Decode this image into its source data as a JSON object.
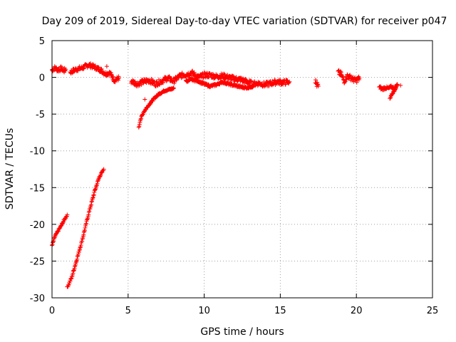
{
  "chart_data": {
    "type": "scatter",
    "title": "Day 209 of 2019, Sidereal Day-to-day VTEC variation (SDTVAR) for receiver p047",
    "xlabel": "GPS time / hours",
    "ylabel": "SDTVAR / TECUs",
    "xlim": [
      0,
      25
    ],
    "ylim": [
      -30,
      5
    ],
    "xticks": [
      0,
      5,
      10,
      15,
      20,
      25
    ],
    "yticks": [
      5,
      0,
      -5,
      -10,
      -15,
      -20,
      -25,
      -30
    ],
    "grid": true,
    "marker": "+",
    "color": "#ff0000",
    "series": [
      {
        "name": "SDTVAR",
        "segments": [
          {
            "x": [
              0.0,
              0.2,
              0.4,
              0.6,
              0.8,
              0.9
            ],
            "y": [
              1.0,
              1.3,
              1.0,
              1.2,
              0.9,
              1.1
            ],
            "spread": 0.6
          },
          {
            "x": [
              1.2,
              1.6,
              2.0,
              2.4,
              2.8,
              3.2,
              3.5,
              3.8,
              4.1,
              4.4
            ],
            "y": [
              0.7,
              1.1,
              1.3,
              1.7,
              1.4,
              1.0,
              0.5,
              0.6,
              -0.4,
              -0.1
            ],
            "spread": 0.6
          },
          {
            "x": [
              0.0,
              0.2,
              0.4,
              0.6,
              0.8,
              1.0
            ],
            "y": [
              -22.9,
              -21.6,
              -20.9,
              -20.2,
              -19.4,
              -18.7
            ],
            "spread": 0.25
          },
          {
            "x": [
              1.0,
              1.3,
              1.6,
              2.0,
              2.4,
              2.8,
              3.1,
              3.4
            ],
            "y": [
              -28.6,
              -27.2,
              -25.0,
              -22.0,
              -18.6,
              -15.5,
              -13.6,
              -12.5
            ],
            "spread": 0.25
          },
          {
            "x": [
              5.7,
              5.8,
              6.0,
              6.3,
              6.7,
              7.0,
              7.4,
              7.8,
              8.0
            ],
            "y": [
              -6.9,
              -5.8,
              -4.8,
              -3.9,
              -2.9,
              -2.3,
              -1.8,
              -1.6,
              -1.5
            ],
            "spread": 0.25
          },
          {
            "x": [
              5.2,
              5.6,
              6.0,
              6.4,
              6.8,
              7.2,
              7.6,
              8.0,
              8.4,
              8.8,
              9.2,
              9.6,
              10.0,
              10.4,
              10.8,
              11.2,
              11.6,
              12.0,
              12.4,
              12.8,
              13.2,
              13.6,
              14.0,
              14.4,
              14.8,
              15.2,
              15.6
            ],
            "y": [
              -0.5,
              -0.9,
              -0.6,
              -0.4,
              -0.9,
              -0.5,
              -0.1,
              -0.5,
              0.2,
              0.4,
              0.6,
              0.0,
              0.3,
              0.3,
              0.1,
              0.2,
              0.0,
              -0.2,
              -0.3,
              -0.6,
              -0.9,
              -0.8,
              -1.0,
              -0.8,
              -0.6,
              -0.7,
              -0.6
            ],
            "spread": 0.7
          },
          {
            "x": [
              8.8,
              9.2,
              9.6,
              10.0,
              10.4,
              10.8,
              11.2,
              11.6,
              12.0,
              12.4,
              12.8,
              13.2
            ],
            "y": [
              -0.5,
              -0.3,
              -0.5,
              -0.9,
              -1.2,
              -1.0,
              -0.6,
              -0.9,
              -1.1,
              -1.3,
              -1.4,
              -1.2
            ],
            "spread": 0.3
          },
          {
            "x": [
              17.3,
              17.4,
              17.5
            ],
            "y": [
              -0.5,
              -1.0,
              -1.2
            ],
            "spread": 0.8
          },
          {
            "x": [
              18.8,
              19.0,
              19.2,
              19.4,
              19.6,
              19.8,
              20.0,
              20.2
            ],
            "y": [
              0.7,
              0.4,
              -0.5,
              0.2,
              0.0,
              -0.3,
              -0.4,
              -0.1
            ],
            "spread": 0.7
          },
          {
            "x": [
              21.5,
              21.7,
              21.9,
              22.1,
              22.3,
              22.5,
              22.7
            ],
            "y": [
              -1.3,
              -1.6,
              -1.4,
              -1.5,
              -1.3,
              -1.5,
              -1.0
            ],
            "spread": 0.4
          },
          {
            "x": [
              22.2,
              22.3,
              22.5,
              22.6
            ],
            "y": [
              -2.9,
              -2.4,
              -1.8,
              -1.3
            ],
            "spread": 0.2
          }
        ],
        "outliers": [
          {
            "x": 6.1,
            "y": -3.0
          },
          {
            "x": 22.9,
            "y": -1.1
          },
          {
            "x": 3.6,
            "y": 1.5
          }
        ]
      }
    ]
  }
}
